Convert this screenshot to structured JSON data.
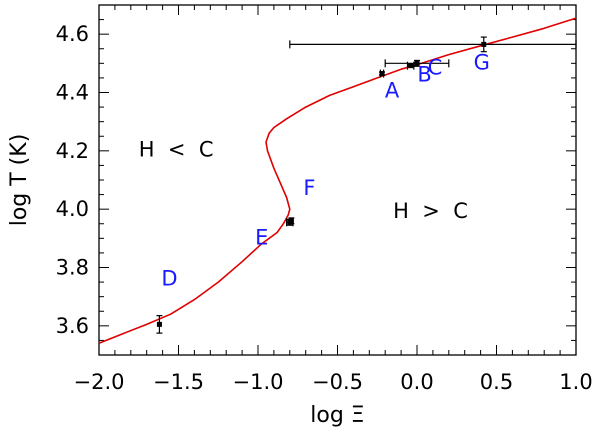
{
  "chart_data": {
    "type": "line",
    "xlabel": "log Ξ",
    "ylabel": "log T (K)",
    "xlim": [
      -2.0,
      1.0
    ],
    "ylim": [
      3.5,
      4.7
    ],
    "x_ticks": [
      "−2.0",
      "−1.5",
      "−1.0",
      "−0.5",
      "0.0",
      "0.5",
      "1.0"
    ],
    "y_ticks": [
      "3.6",
      "3.8",
      "4.0",
      "4.2",
      "4.4",
      "4.6"
    ],
    "grid": false,
    "colors": {
      "curve": "#e00000",
      "labels": "#1a1aff",
      "data": "#000000"
    },
    "curve": {
      "x": [
        -2.0,
        -1.85,
        -1.7,
        -1.55,
        -1.4,
        -1.25,
        -1.1,
        -0.98,
        -0.88,
        -0.84,
        -0.81,
        -0.8,
        -0.82,
        -0.86,
        -0.9,
        -0.94,
        -0.95,
        -0.93,
        -0.9,
        -0.82,
        -0.7,
        -0.55,
        -0.4,
        -0.25,
        -0.1,
        0.0,
        0.2,
        0.4,
        0.6,
        0.8,
        1.0
      ],
      "y": [
        3.54,
        3.573,
        3.605,
        3.64,
        3.69,
        3.75,
        3.82,
        3.88,
        3.92,
        3.95,
        3.98,
        4.0,
        4.04,
        4.09,
        4.14,
        4.2,
        4.23,
        4.26,
        4.28,
        4.31,
        4.35,
        4.39,
        4.42,
        4.45,
        4.48,
        4.495,
        4.53,
        4.56,
        4.59,
        4.62,
        4.655
      ]
    },
    "points": [
      {
        "label": "A",
        "x": -0.22,
        "y": 4.465,
        "xerr": 0.01,
        "yerr": 0.005
      },
      {
        "label": "B",
        "x": -0.04,
        "y": 4.492,
        "xerr": 0.02,
        "yerr": 0.005
      },
      {
        "label": "C",
        "x": 0.0,
        "y": 4.5,
        "xerr": 0.2,
        "yerr": 0.01
      },
      {
        "label": "D",
        "x": -1.62,
        "y": 3.605,
        "xerr": 0.0,
        "yerr": 0.03
      },
      {
        "label": "E",
        "x": -0.8,
        "y": 3.955,
        "xerr": 0.02,
        "yerr": 0.01
      },
      {
        "label": "F",
        "x": -0.79,
        "y": 3.96,
        "xerr": 0.0,
        "yerr": 0.01
      },
      {
        "label": "G",
        "x": 0.42,
        "y": 4.565,
        "xerr": 1.22,
        "yerr": 0.025
      }
    ],
    "annotations": [
      {
        "text": "H < C",
        "x": -1.75,
        "y": 4.18
      },
      {
        "text": "H > C",
        "x": -0.15,
        "y": 3.97
      }
    ]
  }
}
